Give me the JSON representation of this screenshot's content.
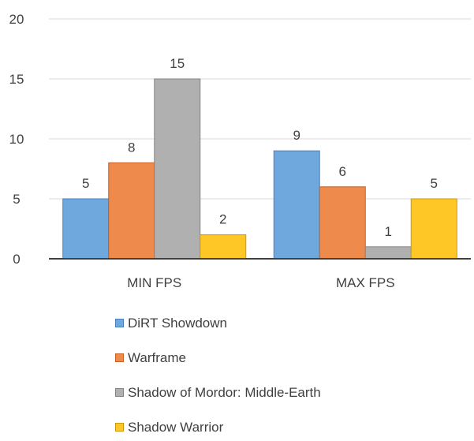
{
  "chart_data": {
    "type": "bar",
    "categories": [
      "MIN FPS",
      "MAX FPS"
    ],
    "series": [
      {
        "name": "DiRT Showdown",
        "values": [
          5,
          9
        ],
        "color": "#6fa8dc",
        "stroke": "#4a7fbf"
      },
      {
        "name": "Warframe",
        "values": [
          8,
          6
        ],
        "color": "#ef8a4d",
        "stroke": "#c45f27"
      },
      {
        "name": "Shadow of Mordor: Middle-Earth",
        "values": [
          15,
          1
        ],
        "color": "#b0b0b0",
        "stroke": "#858585"
      },
      {
        "name": "Shadow Warrior",
        "values": [
          2,
          5
        ],
        "color": "#ffc726",
        "stroke": "#c99a12"
      }
    ],
    "yticks": [
      0,
      5,
      10,
      15,
      20
    ],
    "ylim": [
      0,
      20
    ],
    "title": "",
    "xlabel": "",
    "ylabel": "",
    "grid": true,
    "legend_position": "bottom",
    "data_labels": true
  }
}
